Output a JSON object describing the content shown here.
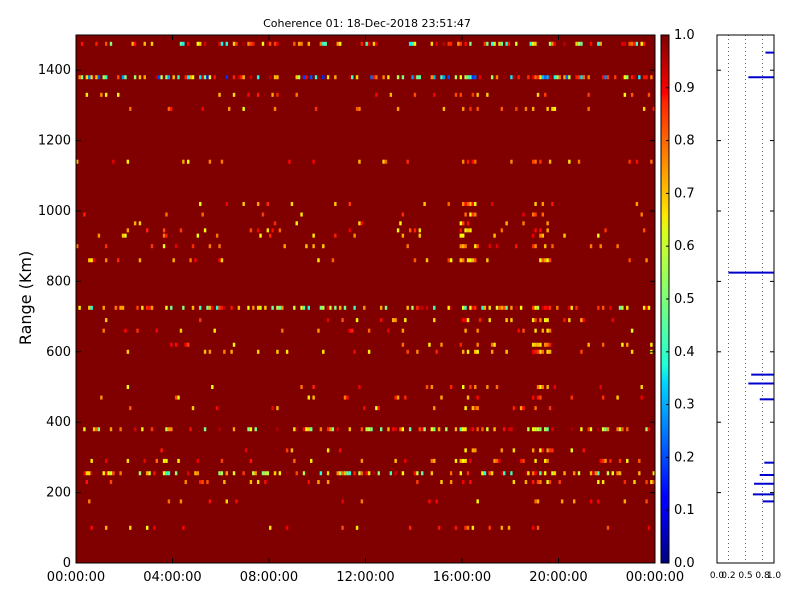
{
  "chart_data": [
    {
      "type": "heatmap",
      "title": "Coherence 01: 18-Dec-2018 23:51:47",
      "xlabel": "",
      "ylabel": "Range (Km)",
      "xlim": [
        "00:00:00",
        "24:00:00"
      ],
      "ylim": [
        0,
        1500
      ],
      "x_tick_labels": [
        "00:00:00",
        "04:00:00",
        "08:00:00",
        "12:00:00",
        "16:00:00",
        "20:00:00",
        "00:00:00"
      ],
      "y_tick_labels": [
        "0",
        "200",
        "400",
        "600",
        "800",
        "1000",
        "1200",
        "1400"
      ],
      "background_value": 1.0,
      "colormap": "jet",
      "colorbar": {
        "min": 0.0,
        "max": 1.0,
        "tick_labels": [
          "0.0",
          "0.1",
          "0.2",
          "0.3",
          "0.4",
          "0.5",
          "0.6",
          "0.7",
          "0.8",
          "0.9",
          "1.0"
        ]
      },
      "low_coherence_range_bands_km": [
        1475,
        1380,
        1330,
        1290,
        1140,
        1020,
        990,
        965,
        945,
        930,
        900,
        860,
        725,
        690,
        660,
        620,
        600,
        500,
        470,
        440,
        380,
        320,
        290,
        255,
        230,
        175,
        100
      ],
      "strong_bands": [
        {
          "range_km": 1475,
          "coherence": 0.8
        },
        {
          "range_km": 1380,
          "coherence": 0.6
        },
        {
          "range_km": 725,
          "coherence": 0.85
        },
        {
          "range_km": 380,
          "coherence": 0.9
        },
        {
          "range_km": 255,
          "coherence": 0.85
        }
      ],
      "active_time_columns": [
        "16:20:00",
        "19:20:00"
      ]
    },
    {
      "type": "line",
      "title": "",
      "xlabel": "",
      "ylabel": "",
      "xlim": [
        0.0,
        1.0
      ],
      "ylim": [
        0,
        1500
      ],
      "x_tick_labels": [
        "0.0",
        "0.2",
        "0.5",
        "0.8",
        "1.0"
      ],
      "y_tick_labels": [],
      "grid": true,
      "series": [
        {
          "color": "#0000cc",
          "segments": [
            {
              "range_km": 1450,
              "from": 0.85,
              "to": 1.0
            },
            {
              "range_km": 1380,
              "from": 0.55,
              "to": 1.0
            },
            {
              "range_km": 825,
              "from": 0.2,
              "to": 1.0
            },
            {
              "range_km": 535,
              "from": 0.6,
              "to": 1.0
            },
            {
              "range_km": 510,
              "from": 0.55,
              "to": 1.0
            },
            {
              "range_km": 465,
              "from": 0.75,
              "to": 1.0
            },
            {
              "range_km": 285,
              "from": 0.83,
              "to": 1.0
            },
            {
              "range_km": 250,
              "from": 0.75,
              "to": 1.0
            },
            {
              "range_km": 225,
              "from": 0.65,
              "to": 1.0
            },
            {
              "range_km": 195,
              "from": 0.63,
              "to": 1.0
            },
            {
              "range_km": 175,
              "from": 0.8,
              "to": 1.0
            }
          ]
        }
      ]
    }
  ]
}
